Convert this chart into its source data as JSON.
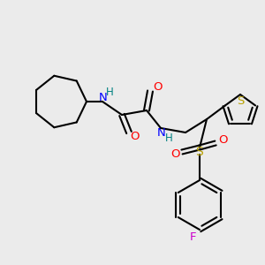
{
  "bg_color": "#ebebeb",
  "bond_color": "#000000",
  "colors": {
    "N": "#0000ff",
    "H": "#008080",
    "O": "#ff0000",
    "S_thio": "#b8a000",
    "S_sulf": "#b8a000",
    "F": "#cc00cc",
    "C": "#000000"
  },
  "figsize": [
    3.0,
    3.0
  ],
  "dpi": 100
}
